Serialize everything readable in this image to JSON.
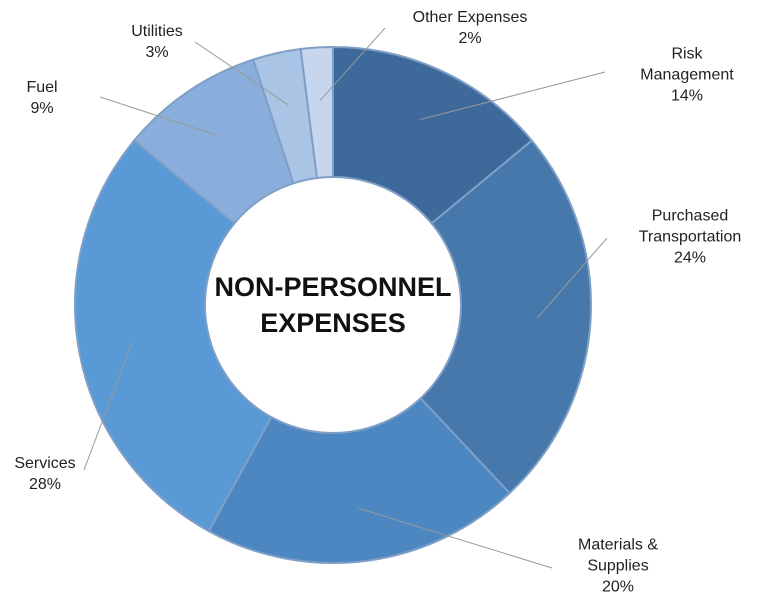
{
  "chart_data": {
    "type": "donut",
    "title": "NON-PERSONNEL EXPENSES",
    "categories": [
      "Risk Management",
      "Purchased Transportation",
      "Materials & Supplies",
      "Services",
      "Fuel",
      "Utilities",
      "Other Expenses"
    ],
    "values": [
      14,
      24,
      20,
      28,
      9,
      3,
      2
    ],
    "value_labels": [
      "14%",
      "24%",
      "20%",
      "28%",
      "9%",
      "3%",
      "2%"
    ],
    "colors": [
      "#3d6a9a",
      "#4678ab",
      "#4d87c1",
      "#5899d6",
      "#8aaedc",
      "#aac4e6",
      "#c5d6ee"
    ]
  }
}
